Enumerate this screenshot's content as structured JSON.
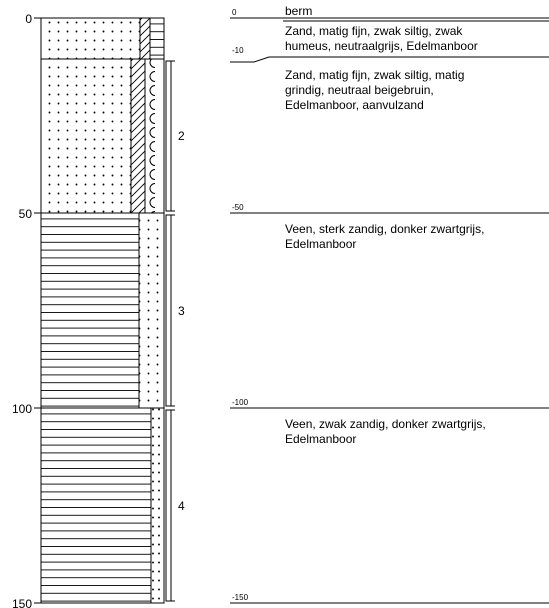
{
  "depth_axis": {
    "ticks": [
      "0",
      "50",
      "100",
      "150"
    ]
  },
  "layers": [
    {
      "top": "0",
      "description_lines": [
        "berm"
      ]
    },
    {
      "top": "",
      "description_lines": [
        "Zand, matig fijn, zwak siltig, zwak",
        "humeus, neutraalgrijs, Edelmanboor"
      ]
    },
    {
      "top": "-10",
      "description_lines": [
        "Zand, matig fijn, zwak siltig, matig",
        "grindig, neutraal beigebruin,",
        "Edelmanboor, aanvulzand"
      ]
    },
    {
      "top": "-50",
      "description_lines": [
        "Veen, sterk zandig, donker zwartgrijs,",
        "Edelmanboor"
      ]
    },
    {
      "top": "-100",
      "description_lines": [
        "Veen, zwak zandig, donker zwartgrijs,",
        "Edelmanboor"
      ]
    }
  ],
  "bottom_label": "-150",
  "samples": [
    "2",
    "3",
    "4"
  ]
}
